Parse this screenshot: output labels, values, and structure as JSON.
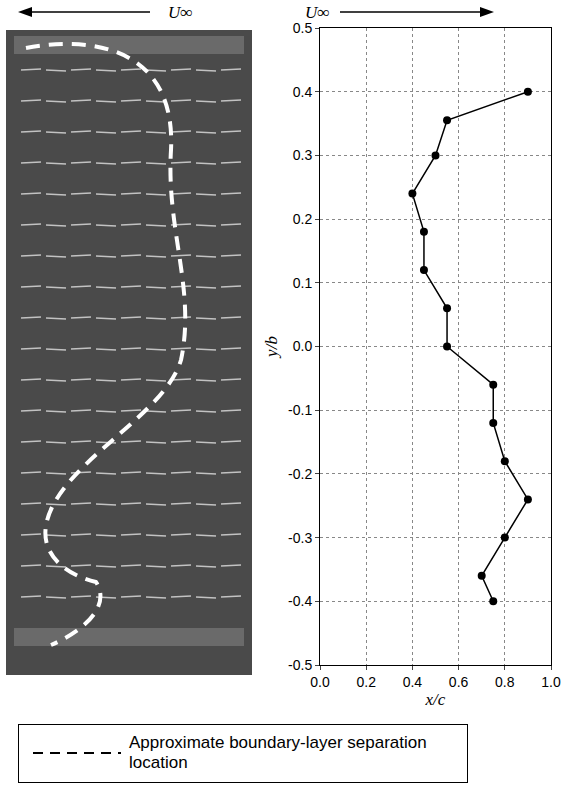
{
  "chart_data": {
    "type": "line",
    "marker": "circle",
    "color": "#000000",
    "x": [
      0.9,
      0.55,
      0.5,
      0.4,
      0.45,
      0.45,
      0.55,
      0.55,
      0.75,
      0.75,
      0.8,
      0.9,
      0.8,
      0.7,
      0.75
    ],
    "values": [
      0.4,
      0.355,
      0.3,
      0.24,
      0.18,
      0.12,
      0.06,
      0.0,
      -0.06,
      -0.12,
      -0.18,
      -0.24,
      -0.3,
      -0.36,
      -0.4
    ],
    "xlabel": "x/c",
    "ylabel": "y/b",
    "xlim": [
      0.0,
      1.0
    ],
    "xticks": [
      {
        "value": 0,
        "label": "0.0"
      },
      0.2,
      0.4,
      0.6,
      0.8,
      {
        "value": 1,
        "label": "1.0"
      }
    ],
    "ylim": [
      -0.5,
      0.5
    ],
    "yticks": [
      -0.5,
      -0.4,
      -0.3,
      -0.2,
      -0.1,
      {
        "value": 0,
        "label": "0.0"
      },
      0.1,
      0.2,
      0.3,
      0.4,
      0.5
    ],
    "grid": true,
    "annotations": [
      "U∞"
    ]
  },
  "photo": {
    "flow_label": "U∞",
    "legend": {
      "text": "Approximate boundary-layer separation location",
      "line_style": "dashed"
    }
  }
}
